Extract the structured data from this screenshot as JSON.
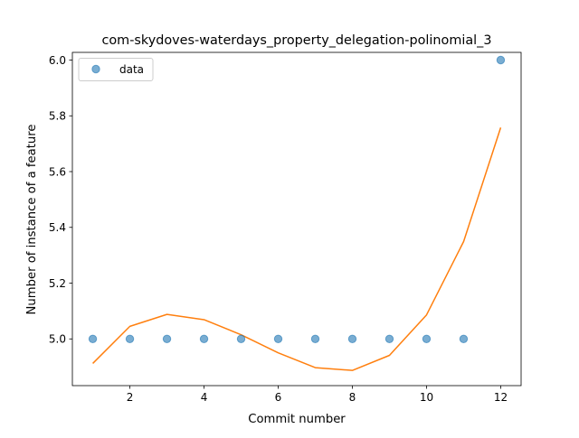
{
  "chart_data": {
    "type": "scatter",
    "title": "com-skydoves-waterdays_property_delegation-polinomial_3",
    "xlabel": "Commit number",
    "ylabel": "Number of instance of a feature",
    "xlim": [
      0.45,
      12.55
    ],
    "ylim": [
      4.8325,
      6.0275
    ],
    "xticks": [
      2,
      4,
      6,
      8,
      10,
      12
    ],
    "yticks": [
      5.0,
      5.2,
      5.4,
      5.6,
      5.8,
      6.0
    ],
    "xtick_labels": [
      "2",
      "4",
      "6",
      "8",
      "10",
      "12"
    ],
    "ytick_labels": [
      "5.0",
      "5.2",
      "5.4",
      "5.6",
      "5.8",
      "6.0"
    ],
    "grid": false,
    "legend": {
      "placement": "upper-left",
      "entries": [
        {
          "label": "data"
        }
      ]
    },
    "series": [
      {
        "name": "data",
        "kind": "scatter",
        "color": "#1f77b4",
        "x": [
          1,
          2,
          3,
          4,
          5,
          6,
          7,
          8,
          9,
          10,
          11,
          12
        ],
        "y": [
          5,
          5,
          5,
          5,
          5,
          5,
          5,
          5,
          5,
          5,
          5,
          6
        ]
      },
      {
        "kind": "line",
        "color": "#ff7f0e",
        "x": [
          1,
          2,
          3,
          4,
          5,
          6,
          7,
          8,
          9,
          10,
          11,
          12
        ],
        "y": [
          4.912,
          5.045,
          5.088,
          5.069,
          5.015,
          4.95,
          4.897,
          4.887,
          4.941,
          5.086,
          5.349,
          5.758
        ]
      }
    ]
  }
}
